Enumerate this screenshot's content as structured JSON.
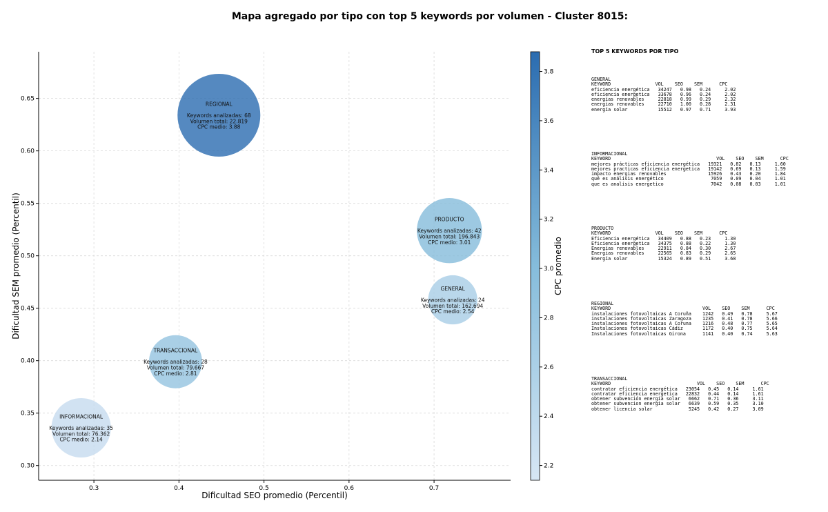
{
  "chart_data": {
    "type": "scatter",
    "title": "Mapa agregado por tipo con top 5 keywords por volumen - Cluster 8015:",
    "xlabel": "Dificultad SEO promedio (Percentil)",
    "ylabel": "Dificultad SEM promedio (Percentil)",
    "colorbar_label": "CPC promedio",
    "xlim": [
      0.235,
      0.79
    ],
    "ylim": [
      0.286,
      0.6945
    ],
    "xticks": [
      "0.3",
      "0.4",
      "0.5",
      "0.6",
      "0.7"
    ],
    "yticks": [
      "0.30",
      "0.35",
      "0.40",
      "0.45",
      "0.50",
      "0.55",
      "0.60",
      "0.65"
    ],
    "colorbar_range": [
      2.14,
      3.88
    ],
    "colorbar_ticks": [
      "2.2",
      "2.4",
      "2.6",
      "2.8",
      "3.0",
      "3.2",
      "3.4",
      "3.6",
      "3.8"
    ],
    "grid": true,
    "points": [
      {
        "name": "REGIONAL",
        "x": 0.447,
        "y": 0.634,
        "keywords": 68,
        "volume": 22819,
        "cpc": 3.88,
        "lines": [
          "REGIONAL",
          "",
          "Keywords analizadas: 68",
          "Volumen total: 22.819",
          "CPC medio: 3.88"
        ]
      },
      {
        "name": "PRODUCTO",
        "x": 0.718,
        "y": 0.524,
        "keywords": 42,
        "volume": 196843,
        "cpc": 3.01,
        "lines": [
          "PRODUCTO",
          "",
          "Keywords analizadas: 42",
          "Volumen total: 196.843",
          "CPC medio: 3.01"
        ]
      },
      {
        "name": "GENERAL",
        "x": 0.722,
        "y": 0.458,
        "keywords": 24,
        "volume": 162694,
        "cpc": 2.54,
        "lines": [
          "GENERAL",
          "",
          "Keywords analizadas: 24",
          "Volumen total: 162.694",
          "CPC medio: 2.54"
        ]
      },
      {
        "name": "TRANSACCIONAL",
        "x": 0.396,
        "y": 0.399,
        "keywords": 28,
        "volume": 79667,
        "cpc": 2.81,
        "lines": [
          "TRANSACCIONAL",
          "",
          "Keywords analizadas: 28",
          "Volumen total: 79.667",
          "CPC medio: 2.81"
        ]
      },
      {
        "name": "INFORMACIONAL",
        "x": 0.285,
        "y": 0.336,
        "keywords": 35,
        "volume": 76362,
        "cpc": 2.14,
        "lines": [
          "INFORMACIONAL",
          "",
          "Keywords analizadas: 35",
          "Volumen total: 76.362",
          "CPC medio: 2.14"
        ]
      }
    ],
    "colors": {
      "light": "#c6dbef",
      "dark": "#2b6cb0",
      "axis": "#000000",
      "grid": "#d9d9d9"
    }
  },
  "table": {
    "heading": "TOP 5 KEYWORDS POR TIPO",
    "blocks": [
      {
        "text": "GENERAL\nKEYWORD                VOL    SEO    SEM      CPC\neficiencia energética   34247   0.98   0.24     2.02\neficiencia energetica   33678   0.96   0.24     2.02\nenergías renovables     22818   0.99   0.29     2.32\nenergias renovables     22710   1.00   0.28     2.31\nenergía solar           15512   0.97   0.71     3.93"
      },
      {
        "text": "INFORMACIONAL\nKEYWORD                                      VOL    SEO    SEM      CPC\nmejores prácticas eficiencia energética   19321   0.82   0.13     1.60\nmejores practicas eficiencia energetica   19142   0.69   0.13     1.59\nimpacto energias renovables               15926   0.43   0.20     1.84\nqué es análisis energético                 7059   0.09   0.04     1.01\nque es analisis energetico                 7042   0.08   0.03     1.01"
      },
      {
        "text": "PRODUCTO\nKEYWORD                VOL    SEO    SEM      CPC\nEficiencia energética   34409   0.88   0.23     1.30\nEficiencia energetica   34375   0.88   0.22     1.30\nEnergías renovables     22911   0.84   0.30     2.67\nEnergias renovables     22565   0.83   0.29     2.65\nEnergía solar           15324   0.89   0.51     3.68"
      },
      {
        "text": "REGIONAL\nKEYWORD                                 VOL    SEO    SEM      CPC\ninstalaciones fotovoltaicas A Coruña    1242   0.49   0.78     5.67\ninstalaciones fotovoltaicas Zaragoza    1235   0.41   0.78     5.66\ninstalaciones fotovoltaicas A Coruna    1216   0.48   0.77     5.65\nInstalaciones fotovoltaicas Cádiz       1172   0.40   0.75     5.64\nInstalaciones fotovoltaicas Girona      1141   0.40   0.74     5.63"
      },
      {
        "text": "TRANSACCIONAL\nKEYWORD                               VOL    SEO    SEM      CPC\ncontratar eficiencia energética   23054   0.45   0.14     1.61\ncontratar eficiencia energetica   22832   0.44   0.14     1.61\nobtener subvención energía solar   6662   0.71   0.36     3.11\nobtener subvencion energia solar   6639   0.59   0.35     3.10\nobtener licencia solar             5245   0.42   0.27     3.09"
      }
    ]
  }
}
